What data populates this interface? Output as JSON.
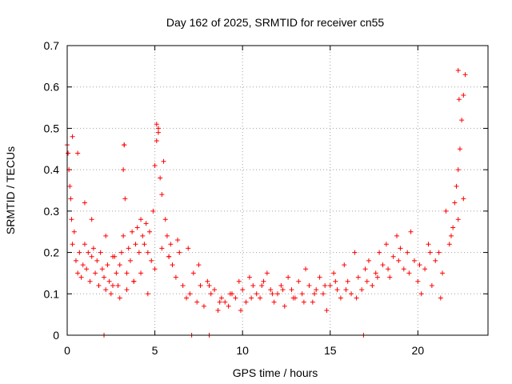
{
  "chart_data": {
    "type": "scatter",
    "title": "Day 162 of 2025, SRMTID for receiver cn55",
    "xlabel": "GPS time / hours",
    "ylabel": "SRMTID / TECUs",
    "xlim": [
      0,
      24
    ],
    "ylim": [
      0,
      0.7
    ],
    "xticks": [
      0,
      5,
      10,
      15,
      20
    ],
    "xtick_labels": [
      "0",
      "5",
      "10",
      "15",
      "20"
    ],
    "yticks": [
      0,
      0.1,
      0.2,
      0.3,
      0.4,
      0.5,
      0.6,
      0.7
    ],
    "ytick_labels": [
      "0",
      "0.1",
      "0.2",
      "0.3",
      "0.4",
      "0.5",
      "0.6",
      "0.7"
    ],
    "grid": true,
    "marker": "+",
    "color": "#ff0000",
    "series": [
      {
        "name": "SRMTID",
        "x": [
          0.0,
          0.05,
          0.1,
          0.15,
          0.2,
          0.25,
          0.3,
          0.4,
          0.5,
          0.6,
          0.7,
          0.8,
          0.9,
          1.0,
          1.1,
          1.2,
          1.3,
          1.4,
          1.5,
          1.6,
          1.7,
          1.8,
          1.9,
          2.0,
          2.1,
          2.2,
          2.3,
          2.4,
          2.5,
          2.6,
          2.7,
          2.8,
          2.9,
          3.0,
          3.1,
          3.2,
          3.25,
          3.3,
          3.4,
          3.5,
          3.6,
          3.7,
          3.8,
          3.9,
          4.0,
          4.1,
          4.2,
          4.3,
          4.4,
          4.5,
          4.6,
          4.7,
          4.8,
          4.9,
          5.0,
          5.1,
          5.2,
          5.3,
          5.4,
          5.5,
          5.6,
          5.7,
          5.8,
          5.9,
          6.0,
          6.2,
          6.4,
          6.6,
          6.8,
          7.0,
          7.2,
          7.4,
          7.6,
          7.8,
          8.0,
          8.2,
          8.4,
          8.6,
          8.8,
          9.0,
          9.2,
          9.4,
          9.6,
          9.8,
          10.0,
          10.2,
          10.4,
          10.6,
          10.8,
          11.0,
          11.2,
          11.4,
          11.6,
          11.8,
          12.0,
          12.2,
          12.4,
          12.6,
          12.8,
          13.0,
          13.2,
          13.4,
          13.6,
          13.8,
          14.0,
          14.2,
          14.4,
          14.6,
          14.8,
          15.0,
          15.2,
          15.4,
          15.6,
          15.8,
          16.0,
          16.2,
          16.4,
          16.6,
          16.8,
          17.0,
          17.2,
          17.4,
          17.6,
          17.8,
          18.0,
          18.2,
          18.4,
          18.6,
          18.8,
          19.0,
          19.2,
          19.4,
          19.6,
          19.8,
          20.0,
          20.2,
          20.4,
          20.6,
          20.8,
          21.0,
          21.2,
          21.4,
          21.6,
          21.8,
          22.0,
          22.1,
          22.2,
          22.3,
          22.4,
          22.5,
          22.6,
          22.7,
          0.3,
          0.6,
          1.0,
          1.4,
          1.8,
          2.2,
          2.6,
          3.0,
          3.4,
          3.8,
          4.2,
          4.6,
          5.0,
          5.4,
          5.8,
          6.3,
          6.9,
          7.5,
          8.1,
          8.7,
          9.3,
          9.9,
          10.5,
          11.1,
          11.7,
          12.3,
          12.9,
          13.5,
          14.1,
          14.7,
          15.3,
          15.9,
          16.5,
          17.1,
          17.7,
          18.3,
          18.9,
          19.5,
          20.1,
          20.7,
          21.3,
          21.9,
          22.3,
          22.6,
          2.1,
          7.1,
          8.1,
          16.9,
          3.25,
          3.2,
          5.2,
          5.1,
          22.3,
          22.35
        ],
        "y": [
          0.46,
          0.44,
          0.4,
          0.36,
          0.33,
          0.28,
          0.22,
          0.25,
          0.18,
          0.15,
          0.2,
          0.14,
          0.17,
          0.22,
          0.16,
          0.2,
          0.13,
          0.19,
          0.21,
          0.15,
          0.18,
          0.12,
          0.2,
          0.16,
          0.14,
          0.11,
          0.17,
          0.13,
          0.1,
          0.12,
          0.19,
          0.15,
          0.12,
          0.09,
          0.2,
          0.24,
          0.46,
          0.33,
          0.15,
          0.21,
          0.18,
          0.25,
          0.13,
          0.22,
          0.26,
          0.2,
          0.28,
          0.24,
          0.22,
          0.27,
          0.2,
          0.25,
          0.18,
          0.3,
          0.41,
          0.47,
          0.5,
          0.38,
          0.34,
          0.42,
          0.28,
          0.24,
          0.19,
          0.22,
          0.17,
          0.14,
          0.2,
          0.12,
          0.09,
          0.1,
          0.15,
          0.08,
          0.12,
          0.07,
          0.13,
          0.1,
          0.11,
          0.06,
          0.09,
          0.08,
          0.07,
          0.1,
          0.09,
          0.13,
          0.11,
          0.08,
          0.14,
          0.12,
          0.1,
          0.09,
          0.13,
          0.15,
          0.11,
          0.08,
          0.1,
          0.12,
          0.07,
          0.14,
          0.11,
          0.09,
          0.13,
          0.1,
          0.16,
          0.12,
          0.08,
          0.11,
          0.14,
          0.1,
          0.06,
          0.12,
          0.15,
          0.11,
          0.09,
          0.17,
          0.13,
          0.1,
          0.2,
          0.14,
          0.11,
          0.16,
          0.18,
          0.12,
          0.15,
          0.2,
          0.17,
          0.22,
          0.14,
          0.19,
          0.24,
          0.21,
          0.16,
          0.2,
          0.25,
          0.18,
          0.13,
          0.1,
          0.16,
          0.22,
          0.12,
          0.18,
          0.2,
          0.15,
          0.3,
          0.22,
          0.26,
          0.32,
          0.36,
          0.4,
          0.45,
          0.52,
          0.58,
          0.63,
          0.48,
          0.44,
          0.32,
          0.28,
          0.12,
          0.24,
          0.19,
          0.17,
          0.11,
          0.13,
          0.15,
          0.1,
          0.16,
          0.21,
          0.19,
          0.23,
          0.21,
          0.17,
          0.12,
          0.08,
          0.1,
          0.06,
          0.09,
          0.12,
          0.1,
          0.11,
          0.09,
          0.08,
          0.1,
          0.12,
          0.13,
          0.11,
          0.09,
          0.13,
          0.14,
          0.16,
          0.18,
          0.15,
          0.17,
          0.2,
          0.09,
          0.24,
          0.28,
          0.33,
          0.0,
          0.0,
          0.0,
          0.0,
          0.46,
          0.4,
          0.49,
          0.51,
          0.64,
          0.57
        ]
      }
    ]
  }
}
